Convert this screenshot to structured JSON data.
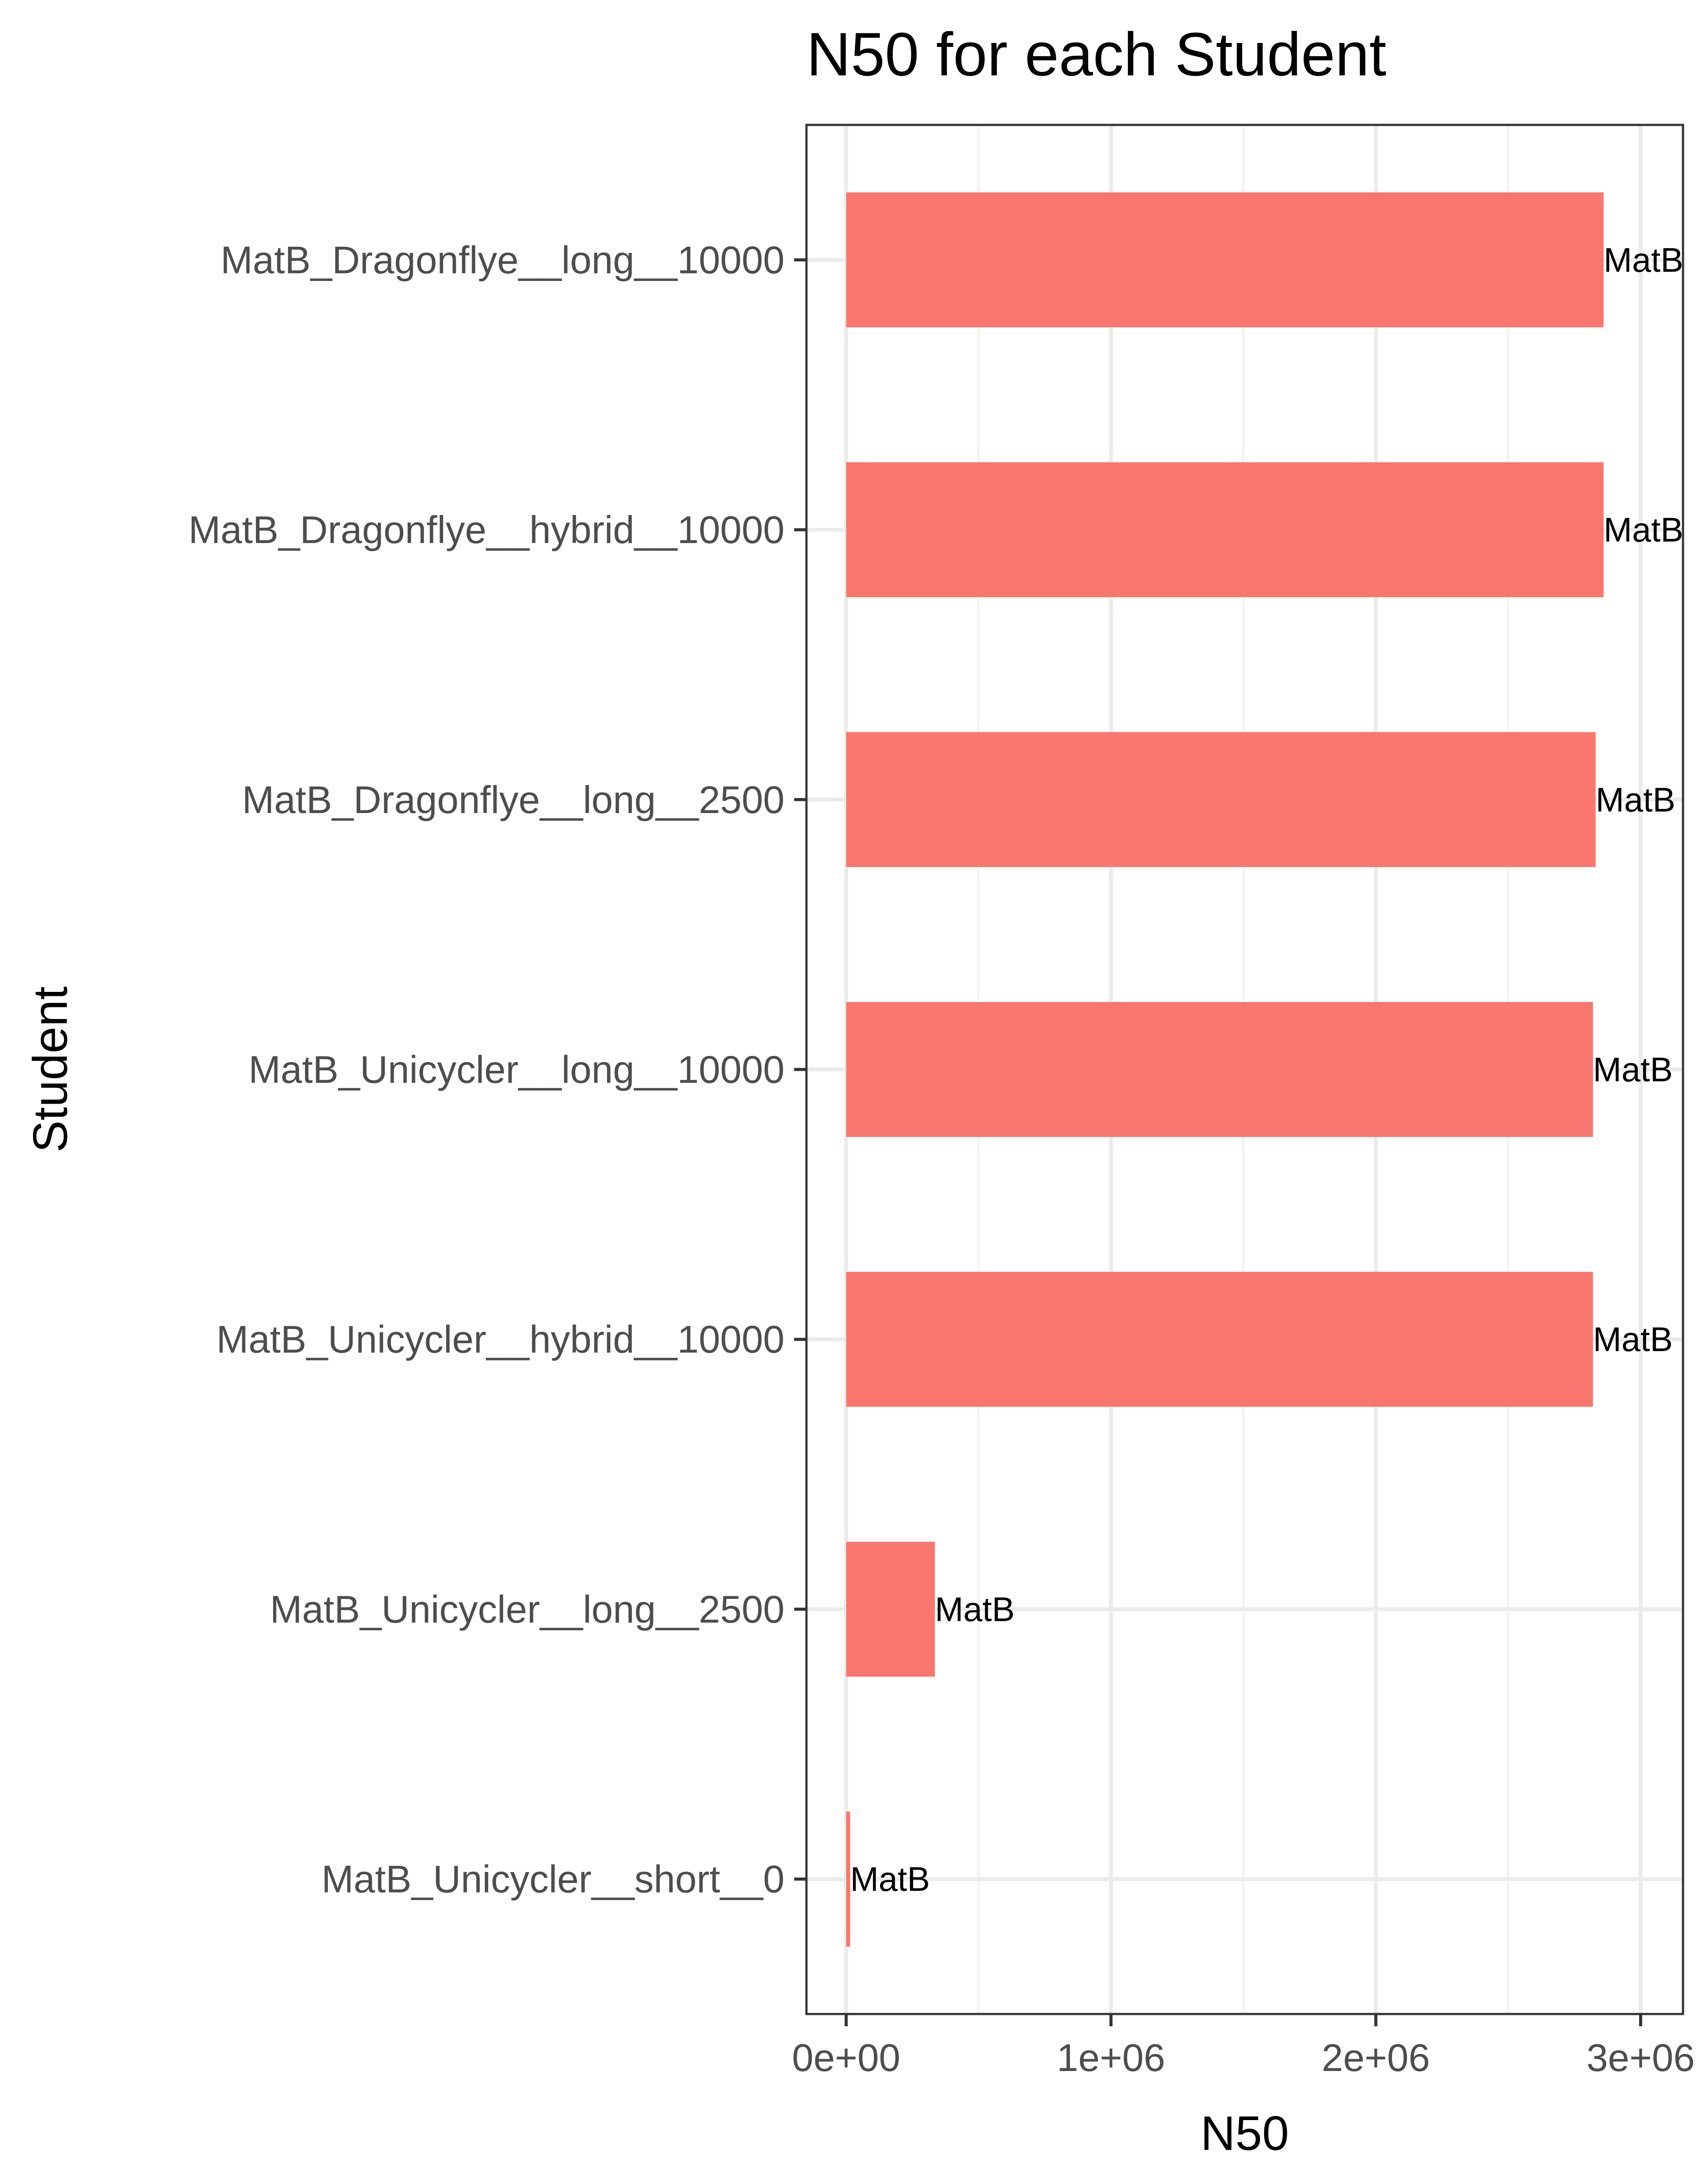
{
  "chart_data": {
    "type": "bar",
    "orientation": "horizontal",
    "title": "N50 for each Student",
    "xlabel": "N50",
    "ylabel": "Student",
    "categories": [
      "MatB_Dragonflye__long__10000",
      "MatB_Dragonflye__hybrid__10000",
      "MatB_Dragonflye__long__2500",
      "MatB_Unicycler__long__10000",
      "MatB_Unicycler__hybrid__10000",
      "MatB_Unicycler__long__2500",
      "MatB_Unicycler__short__0"
    ],
    "values": [
      2860000,
      2860000,
      2830000,
      2820000,
      2820000,
      335000,
      15000
    ],
    "data_labels": [
      "MatB",
      "MatB",
      "MatB",
      "MatB",
      "MatB",
      "MatB",
      "MatB"
    ],
    "xlim": [
      -150000,
      3160000
    ],
    "x_ticks": [
      0,
      1000000,
      2000000,
      3000000
    ],
    "x_tick_labels": [
      "0e+00",
      "1e+06",
      "2e+06",
      "3e+06"
    ],
    "grid": true,
    "legend": "none",
    "bar_color": "#F8766D"
  }
}
